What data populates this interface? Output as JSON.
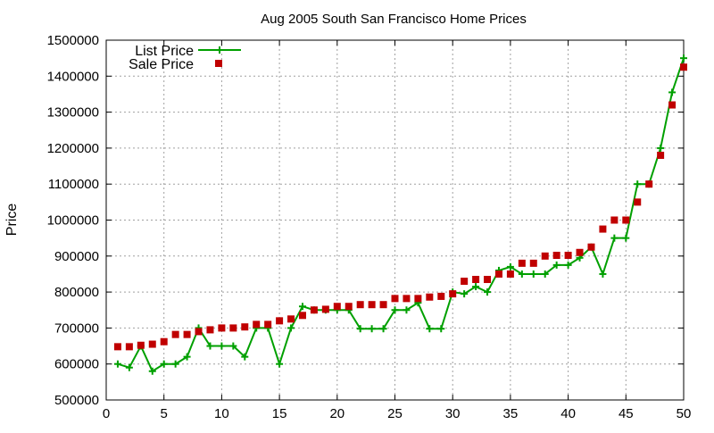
{
  "chart_data": {
    "type": "line",
    "title": "Aug 2005 South San Francisco Home Prices",
    "xlabel": "",
    "ylabel": "Price",
    "xlim": [
      0,
      50
    ],
    "ylim": [
      500000,
      1500000
    ],
    "xticks": [
      "0",
      "5",
      "10",
      "15",
      "20",
      "25",
      "30",
      "35",
      "40",
      "45",
      "50"
    ],
    "yticks": [
      "500000",
      "600000",
      "700000",
      "800000",
      "900000",
      "1000000",
      "1100000",
      "1200000",
      "1300000",
      "1400000",
      "1500000"
    ],
    "grid": true,
    "legend_position": "top-left",
    "x": [
      1,
      2,
      3,
      4,
      5,
      6,
      7,
      8,
      9,
      10,
      11,
      12,
      13,
      14,
      15,
      16,
      17,
      18,
      19,
      20,
      21,
      22,
      23,
      24,
      25,
      26,
      27,
      28,
      29,
      30,
      31,
      32,
      33,
      34,
      35,
      36,
      37,
      38,
      39,
      40,
      41,
      42,
      43,
      44,
      45,
      46,
      47,
      48,
      49,
      50
    ],
    "series": [
      {
        "name": "List Price",
        "style": "linespoints",
        "color": "#00a000",
        "marker": "plus",
        "values": [
          600000,
          590000,
          650000,
          580000,
          600000,
          600000,
          620000,
          700000,
          650000,
          650000,
          650000,
          620000,
          700000,
          700000,
          600000,
          700000,
          760000,
          750000,
          750000,
          750000,
          750000,
          698000,
          698000,
          698000,
          750000,
          750000,
          770000,
          698000,
          698000,
          800000,
          795000,
          815000,
          800000,
          860000,
          870000,
          850000,
          850000,
          850000,
          875000,
          875000,
          895000,
          925000,
          850000,
          950000,
          950000,
          1100000,
          1100000,
          1200000,
          1355000,
          1450000
        ]
      },
      {
        "name": "Sale Price",
        "style": "points",
        "color": "#c00000",
        "marker": "square",
        "values": [
          648000,
          648000,
          652000,
          655000,
          662000,
          682000,
          682000,
          690000,
          695000,
          700000,
          700000,
          703000,
          710000,
          710000,
          720000,
          725000,
          735000,
          750000,
          752000,
          760000,
          760000,
          765000,
          765000,
          765000,
          782000,
          782000,
          782000,
          786000,
          788000,
          795000,
          830000,
          835000,
          835000,
          850000,
          850000,
          880000,
          880000,
          900000,
          902000,
          902000,
          910000,
          925000,
          975000,
          1000000,
          1000000,
          1050000,
          1100000,
          1180000,
          1320000,
          1425000
        ]
      }
    ]
  }
}
